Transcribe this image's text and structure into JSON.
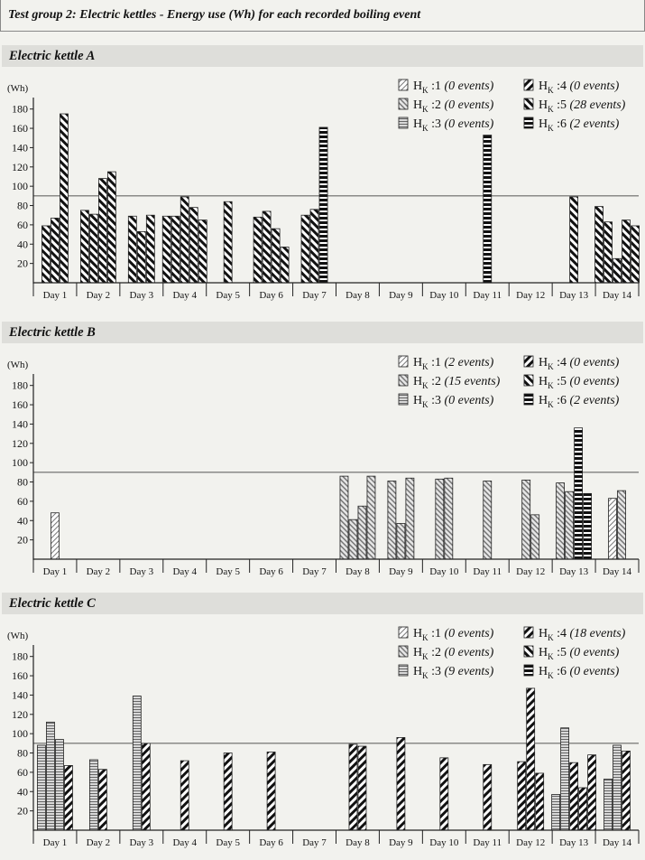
{
  "title": "Test group 2: Electric kettles - Energy use (Wh) for each recorded boiling event",
  "chart_data": [
    {
      "type": "bar",
      "title": "Electric kettle A",
      "ylabel": "(Wh)",
      "ylim": [
        0,
        190
      ],
      "yticks": [
        20,
        40,
        60,
        80,
        100,
        120,
        140,
        160,
        180
      ],
      "reference_line": 90,
      "categories": [
        "Day 1",
        "Day 2",
        "Day 3",
        "Day 4",
        "Day 5",
        "Day 6",
        "Day 7",
        "Day 8",
        "Day 9",
        "Day 10",
        "Day 11",
        "Day 12",
        "Day 13",
        "Day 14"
      ],
      "legend": [
        {
          "label": "H",
          "sub": "K",
          "level": ":1",
          "events": "(0 events)",
          "pattern": "p1"
        },
        {
          "label": "H",
          "sub": "K",
          "level": ":2",
          "events": "(0 events)",
          "pattern": "p2"
        },
        {
          "label": "H",
          "sub": "K",
          "level": ":3",
          "events": "(0 events)",
          "pattern": "p3"
        },
        {
          "label": "H",
          "sub": "K",
          "level": ":4",
          "events": "(0 events)",
          "pattern": "p4"
        },
        {
          "label": "H",
          "sub": "K",
          "level": ":5",
          "events": "(28 events)",
          "pattern": "p5"
        },
        {
          "label": "H",
          "sub": "K",
          "level": ":6",
          "events": "(2 events)",
          "pattern": "p6"
        }
      ],
      "days": [
        [
          {
            "v": 59,
            "s": 5
          },
          {
            "v": 67,
            "s": 5
          },
          {
            "v": 175,
            "s": 5
          }
        ],
        [
          {
            "v": 75,
            "s": 5
          },
          {
            "v": 71,
            "s": 5
          },
          {
            "v": 108,
            "s": 5
          },
          {
            "v": 115,
            "s": 5
          }
        ],
        [
          {
            "v": 69,
            "s": 5
          },
          {
            "v": 53,
            "s": 5
          },
          {
            "v": 70,
            "s": 5
          }
        ],
        [
          {
            "v": 69,
            "s": 5
          },
          {
            "v": 69,
            "s": 5
          },
          {
            "v": 89,
            "s": 5
          },
          {
            "v": 78,
            "s": 5
          },
          {
            "v": 65,
            "s": 5
          }
        ],
        [
          {
            "v": 84,
            "s": 5
          }
        ],
        [
          {
            "v": 68,
            "s": 5
          },
          {
            "v": 74,
            "s": 5
          },
          {
            "v": 56,
            "s": 5
          },
          {
            "v": 37,
            "s": 5
          }
        ],
        [
          {
            "v": 70,
            "s": 5
          },
          {
            "v": 76,
            "s": 5
          },
          {
            "v": 161,
            "s": 6
          }
        ],
        [],
        [],
        [],
        [
          {
            "v": 153,
            "s": 6
          }
        ],
        [],
        [
          {
            "v": 89,
            "s": 5
          }
        ],
        [
          {
            "v": 79,
            "s": 5
          },
          {
            "v": 63,
            "s": 5
          },
          {
            "v": 25,
            "s": 5
          },
          {
            "v": 65,
            "s": 5
          },
          {
            "v": 59,
            "s": 5
          }
        ]
      ]
    },
    {
      "type": "bar",
      "title": "Electric kettle B",
      "ylabel": "(Wh)",
      "ylim": [
        0,
        190
      ],
      "yticks": [
        20,
        40,
        60,
        80,
        100,
        120,
        140,
        160,
        180
      ],
      "reference_line": 90,
      "categories": [
        "Day 1",
        "Day 2",
        "Day 3",
        "Day 4",
        "Day 5",
        "Day 6",
        "Day 7",
        "Day 8",
        "Day 9",
        "Day 10",
        "Day 11",
        "Day 12",
        "Day 13",
        "Day 14"
      ],
      "legend": [
        {
          "label": "H",
          "sub": "K",
          "level": ":1",
          "events": "(2 events)",
          "pattern": "p1"
        },
        {
          "label": "H",
          "sub": "K",
          "level": ":2",
          "events": "(15 events)",
          "pattern": "p2"
        },
        {
          "label": "H",
          "sub": "K",
          "level": ":3",
          "events": "(0 events)",
          "pattern": "p3"
        },
        {
          "label": "H",
          "sub": "K",
          "level": ":4",
          "events": "(0 events)",
          "pattern": "p4"
        },
        {
          "label": "H",
          "sub": "K",
          "level": ":5",
          "events": "(0 events)",
          "pattern": "p5"
        },
        {
          "label": "H",
          "sub": "K",
          "level": ":6",
          "events": "(2 events)",
          "pattern": "p6"
        }
      ],
      "days": [
        [
          {
            "v": 48,
            "s": 1
          }
        ],
        [],
        [],
        [],
        [],
        [],
        [],
        [
          {
            "v": 86,
            "s": 2
          },
          {
            "v": 41,
            "s": 2
          },
          {
            "v": 55,
            "s": 2
          },
          {
            "v": 86,
            "s": 2
          }
        ],
        [
          {
            "v": 81,
            "s": 2
          },
          {
            "v": 37,
            "s": 2
          },
          {
            "v": 84,
            "s": 2
          }
        ],
        [
          {
            "v": 83,
            "s": 2
          },
          {
            "v": 84,
            "s": 2
          }
        ],
        [
          {
            "v": 81,
            "s": 2
          }
        ],
        [
          {
            "v": 82,
            "s": 2
          },
          {
            "v": 46,
            "s": 2
          }
        ],
        [
          {
            "v": 79,
            "s": 2
          },
          {
            "v": 70,
            "s": 2
          },
          {
            "v": 136,
            "s": 6
          },
          {
            "v": 68,
            "s": 6
          }
        ],
        [
          {
            "v": 63,
            "s": 1
          },
          {
            "v": 71,
            "s": 2
          }
        ]
      ]
    },
    {
      "type": "bar",
      "title": "Electric kettle C",
      "ylabel": "(Wh)",
      "ylim": [
        0,
        190
      ],
      "yticks": [
        20,
        40,
        60,
        80,
        100,
        120,
        140,
        160,
        180
      ],
      "reference_line": 90,
      "categories": [
        "Day 1",
        "Day 2",
        "Day 3",
        "Day 4",
        "Day 5",
        "Day 6",
        "Day 7",
        "Day 8",
        "Day 9",
        "Day 10",
        "Day 11",
        "Day 12",
        "Day 13",
        "Day 14"
      ],
      "legend": [
        {
          "label": "H",
          "sub": "K",
          "level": ":1",
          "events": "(0 events)",
          "pattern": "p1"
        },
        {
          "label": "H",
          "sub": "K",
          "level": ":2",
          "events": "(0 events)",
          "pattern": "p2"
        },
        {
          "label": "H",
          "sub": "K",
          "level": ":3",
          "events": "(9 events)",
          "pattern": "p3"
        },
        {
          "label": "H",
          "sub": "K",
          "level": ":4",
          "events": "(18 events)",
          "pattern": "p4"
        },
        {
          "label": "H",
          "sub": "K",
          "level": ":5",
          "events": "(0 events)",
          "pattern": "p5"
        },
        {
          "label": "H",
          "sub": "K",
          "level": ":6",
          "events": "(0 events)",
          "pattern": "p6"
        }
      ],
      "days": [
        [
          {
            "v": 88,
            "s": 3
          },
          {
            "v": 112,
            "s": 3
          },
          {
            "v": 94,
            "s": 3
          },
          {
            "v": 67,
            "s": 4
          }
        ],
        [
          {
            "v": 73,
            "s": 3
          },
          {
            "v": 63,
            "s": 4
          }
        ],
        [
          {
            "v": 139,
            "s": 3
          },
          {
            "v": 90,
            "s": 4
          }
        ],
        [
          {
            "v": 72,
            "s": 4
          }
        ],
        [
          {
            "v": 80,
            "s": 4
          }
        ],
        [
          {
            "v": 81,
            "s": 4
          }
        ],
        [],
        [
          {
            "v": 89,
            "s": 4
          },
          {
            "v": 87,
            "s": 4
          }
        ],
        [
          {
            "v": 96,
            "s": 4
          }
        ],
        [
          {
            "v": 75,
            "s": 4
          }
        ],
        [
          {
            "v": 68,
            "s": 4
          }
        ],
        [
          {
            "v": 71,
            "s": 4
          },
          {
            "v": 147,
            "s": 4
          },
          {
            "v": 59,
            "s": 4
          }
        ],
        [
          {
            "v": 37,
            "s": 3
          },
          {
            "v": 106,
            "s": 3
          },
          {
            "v": 70,
            "s": 4
          },
          {
            "v": 44,
            "s": 4
          },
          {
            "v": 78,
            "s": 4
          }
        ],
        [
          {
            "v": 53,
            "s": 3
          },
          {
            "v": 88,
            "s": 3
          },
          {
            "v": 82,
            "s": 4
          }
        ]
      ]
    }
  ]
}
